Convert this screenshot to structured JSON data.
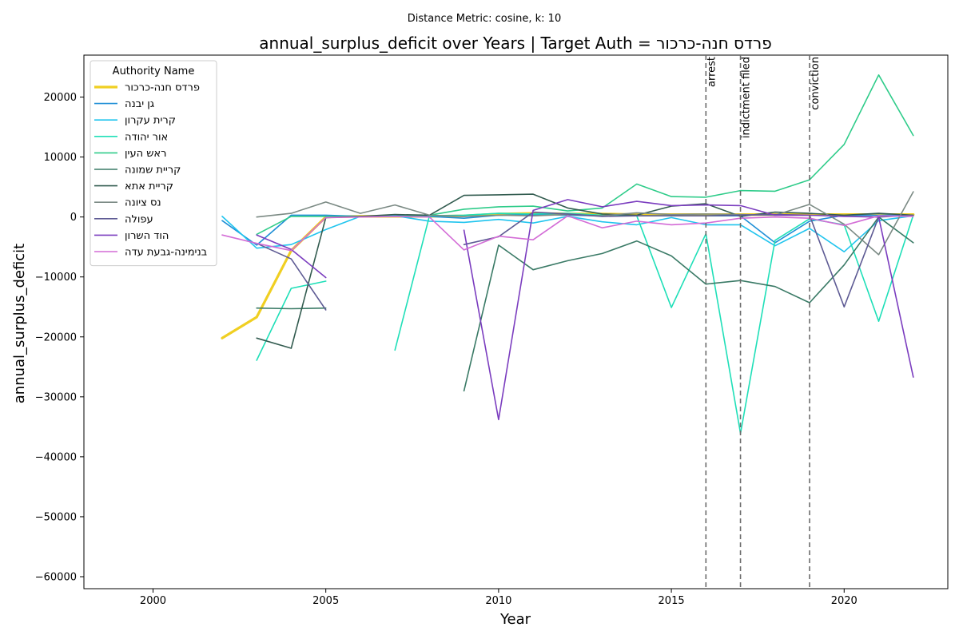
{
  "suptitle": "Distance Metric: cosine, k: 10",
  "chart_data": {
    "type": "line",
    "title": "annual_surplus_deficit over Years | Target Auth = פרדס חנה-כרכור",
    "xlabel": "Year",
    "ylabel": "annual_surplus_deficit",
    "xlim": [
      1998,
      2023
    ],
    "ylim": [
      -62000,
      27000
    ],
    "xticks": [
      2000,
      2005,
      2010,
      2015,
      2020
    ],
    "yticks": [
      -60000,
      -50000,
      -40000,
      -30000,
      -20000,
      -10000,
      0,
      10000,
      20000
    ],
    "grid": false,
    "legend": {
      "title": "Authority Name",
      "position": "upper-left"
    },
    "events": [
      {
        "x": 2016,
        "label": "arrest"
      },
      {
        "x": 2017,
        "label": "indictment filed"
      },
      {
        "x": 2019,
        "label": "conviction"
      }
    ],
    "series": [
      {
        "name": "פרדס חנה-כרכור",
        "color": "#f0cf22",
        "width": 3.2,
        "target": true,
        "points": [
          [
            2002,
            -20200
          ],
          [
            2003,
            -16700
          ],
          [
            2004,
            -5600
          ],
          [
            2005,
            0
          ],
          [
            2006,
            100
          ],
          [
            2007,
            100
          ],
          [
            2008,
            100
          ],
          [
            2009,
            200
          ],
          [
            2010,
            500
          ],
          [
            2011,
            600
          ],
          [
            2012,
            500
          ],
          [
            2013,
            500
          ],
          [
            2014,
            400
          ],
          [
            2015,
            400
          ],
          [
            2016,
            400
          ],
          [
            2017,
            400
          ],
          [
            2018,
            400
          ],
          [
            2019,
            400
          ],
          [
            2020,
            400
          ],
          [
            2021,
            400
          ],
          [
            2022,
            400
          ]
        ]
      },
      {
        "name": "גן יבנה",
        "color": "#1f8fd6",
        "width": 1.6,
        "points": [
          [
            2002,
            -600
          ],
          [
            2003,
            -4700
          ],
          [
            2004,
            300
          ],
          [
            2005,
            300
          ],
          [
            2006,
            100
          ],
          [
            2007,
            200
          ],
          [
            2008,
            100
          ],
          [
            2009,
            -200
          ],
          [
            2010,
            300
          ],
          [
            2011,
            400
          ],
          [
            2012,
            300
          ],
          [
            2013,
            200
          ],
          [
            2014,
            200
          ],
          [
            2015,
            200
          ],
          [
            2016,
            200
          ],
          [
            2017,
            200
          ],
          [
            2018,
            -4300
          ],
          [
            2019,
            -700
          ],
          [
            2020,
            300
          ],
          [
            2021,
            300
          ],
          [
            2022,
            300
          ]
        ]
      },
      {
        "name": "קרית עקרון",
        "color": "#1fc4ee",
        "width": 1.6,
        "points": [
          [
            2002,
            100
          ],
          [
            2003,
            -5200
          ],
          [
            2004,
            -4600
          ],
          [
            2005,
            -2100
          ],
          [
            2006,
            100
          ],
          [
            2007,
            200
          ],
          [
            2008,
            -700
          ],
          [
            2009,
            -900
          ],
          [
            2010,
            -400
          ],
          [
            2011,
            -1000
          ],
          [
            2012,
            100
          ],
          [
            2013,
            -800
          ],
          [
            2014,
            -1300
          ],
          [
            2015,
            -100
          ],
          [
            2016,
            -1300
          ],
          [
            2017,
            -1300
          ],
          [
            2018,
            -4800
          ],
          [
            2019,
            -1900
          ],
          [
            2020,
            -5800
          ],
          [
            2021,
            -600
          ],
          [
            2022,
            200
          ]
        ]
      },
      {
        "name": "אור יהודה",
        "color": "#1fdfb8",
        "width": 1.6,
        "segments": [
          [
            [
              2003,
              -23900
            ],
            [
              2004,
              -11900
            ],
            [
              2005,
              -10700
            ]
          ],
          [
            [
              2007,
              -22200
            ],
            [
              2008,
              200
            ],
            [
              2009,
              300
            ],
            [
              2010,
              600
            ],
            [
              2011,
              500
            ],
            [
              2012,
              600
            ],
            [
              2013,
              300
            ],
            [
              2014,
              200
            ],
            [
              2015,
              -15100
            ],
            [
              2016,
              -2800
            ],
            [
              2017,
              -36100
            ],
            [
              2018,
              -3900
            ],
            [
              2019,
              -300
            ],
            [
              2020,
              -1300
            ],
            [
              2021,
              -17400
            ],
            [
              2022,
              300
            ]
          ]
        ]
      },
      {
        "name": "ראש העין",
        "color": "#2fcc8a",
        "width": 1.6,
        "points": [
          [
            2003,
            -2900
          ],
          [
            2004,
            100
          ],
          [
            2005,
            100
          ],
          [
            2006,
            100
          ],
          [
            2007,
            100
          ],
          [
            2008,
            300
          ],
          [
            2009,
            1300
          ],
          [
            2010,
            1700
          ],
          [
            2011,
            1800
          ],
          [
            2012,
            1000
          ],
          [
            2013,
            1500
          ],
          [
            2014,
            5500
          ],
          [
            2015,
            3400
          ],
          [
            2016,
            3300
          ],
          [
            2017,
            4400
          ],
          [
            2018,
            4300
          ],
          [
            2019,
            6200
          ],
          [
            2020,
            12100
          ],
          [
            2021,
            23700
          ],
          [
            2022,
            13600
          ]
        ]
      },
      {
        "name": "קריית שמונה",
        "color": "#3a7a66",
        "width": 1.6,
        "segments": [
          [
            [
              2003,
              -15200
            ],
            [
              2004,
              -15300
            ],
            [
              2005,
              -15200
            ]
          ],
          [
            [
              2009,
              -29000
            ],
            [
              2010,
              -4700
            ],
            [
              2011,
              -8800
            ],
            [
              2012,
              -7300
            ],
            [
              2013,
              -6100
            ],
            [
              2014,
              -4000
            ],
            [
              2015,
              -6500
            ],
            [
              2016,
              -11200
            ],
            [
              2017,
              -10600
            ],
            [
              2018,
              -11600
            ],
            [
              2019,
              -14300
            ],
            [
              2020,
              -8000
            ],
            [
              2021,
              0
            ],
            [
              2022,
              -4300
            ]
          ]
        ]
      },
      {
        "name": "קריית אתא",
        "color": "#335c50",
        "width": 1.6,
        "points": [
          [
            2003,
            -20200
          ],
          [
            2004,
            -21900
          ],
          [
            2005,
            -100
          ],
          [
            2006,
            100
          ],
          [
            2007,
            400
          ],
          [
            2008,
            300
          ],
          [
            2009,
            3600
          ],
          [
            2010,
            3700
          ],
          [
            2011,
            3800
          ],
          [
            2012,
            1500
          ],
          [
            2013,
            500
          ],
          [
            2014,
            300
          ],
          [
            2015,
            1800
          ],
          [
            2016,
            2200
          ],
          [
            2017,
            100
          ],
          [
            2018,
            800
          ],
          [
            2019,
            600
          ],
          [
            2020,
            300
          ],
          [
            2021,
            600
          ],
          [
            2022,
            300
          ]
        ]
      },
      {
        "name": "נס ציונה",
        "color": "#7b8a84",
        "width": 1.6,
        "points": [
          [
            2003,
            0
          ],
          [
            2004,
            600
          ],
          [
            2005,
            2500
          ],
          [
            2006,
            600
          ],
          [
            2007,
            2000
          ],
          [
            2008,
            300
          ],
          [
            2009,
            100
          ],
          [
            2010,
            300
          ],
          [
            2011,
            200
          ],
          [
            2012,
            400
          ],
          [
            2013,
            200
          ],
          [
            2014,
            700
          ],
          [
            2015,
            400
          ],
          [
            2016,
            500
          ],
          [
            2017,
            400
          ],
          [
            2018,
            300
          ],
          [
            2019,
            2100
          ],
          [
            2020,
            -1200
          ],
          [
            2021,
            -6300
          ],
          [
            2022,
            4200
          ]
        ]
      },
      {
        "name": "עפולה",
        "color": "#5e5b94",
        "width": 1.6,
        "segments": [
          [
            [
              2003,
              -4400
            ],
            [
              2004,
              -7000
            ],
            [
              2005,
              -15500
            ]
          ],
          [
            [
              2009,
              -4600
            ],
            [
              2010,
              -3300
            ],
            [
              2011,
              800
            ],
            [
              2012,
              500
            ],
            [
              2013,
              100
            ],
            [
              2014,
              200
            ],
            [
              2015,
              200
            ],
            [
              2016,
              200
            ],
            [
              2017,
              300
            ],
            [
              2018,
              400
            ],
            [
              2019,
              300
            ],
            [
              2020,
              -15000
            ],
            [
              2021,
              0
            ],
            [
              2022,
              300
            ]
          ]
        ]
      },
      {
        "name": "הוד השרון",
        "color": "#7b3dbf",
        "width": 1.6,
        "segments": [
          [
            [
              2003,
              -3000
            ],
            [
              2004,
              -5400
            ],
            [
              2005,
              -10100
            ]
          ],
          [
            [
              2009,
              -2200
            ],
            [
              2010,
              -33800
            ],
            [
              2011,
              1100
            ],
            [
              2012,
              2900
            ],
            [
              2013,
              1700
            ],
            [
              2014,
              2600
            ],
            [
              2015,
              1900
            ],
            [
              2016,
              2000
            ],
            [
              2017,
              1900
            ],
            [
              2018,
              300
            ],
            [
              2019,
              300
            ],
            [
              2020,
              100
            ],
            [
              2021,
              0
            ],
            [
              2022,
              -26700
            ]
          ]
        ]
      },
      {
        "name": "בנימינה-גבעת עדה",
        "color": "#d36cd6",
        "width": 1.6,
        "points": [
          [
            2002,
            -3000
          ],
          [
            2003,
            -4400
          ],
          [
            2004,
            -5600
          ],
          [
            2005,
            -100
          ],
          [
            2006,
            0
          ],
          [
            2007,
            100
          ],
          [
            2008,
            0
          ],
          [
            2009,
            -5500
          ],
          [
            2010,
            -3200
          ],
          [
            2011,
            -3800
          ],
          [
            2012,
            200
          ],
          [
            2013,
            -1800
          ],
          [
            2014,
            -700
          ],
          [
            2015,
            -1300
          ],
          [
            2016,
            -1000
          ],
          [
            2017,
            -200
          ],
          [
            2018,
            0
          ],
          [
            2019,
            -200
          ],
          [
            2020,
            -1400
          ],
          [
            2021,
            200
          ],
          [
            2022,
            100
          ]
        ]
      }
    ]
  }
}
